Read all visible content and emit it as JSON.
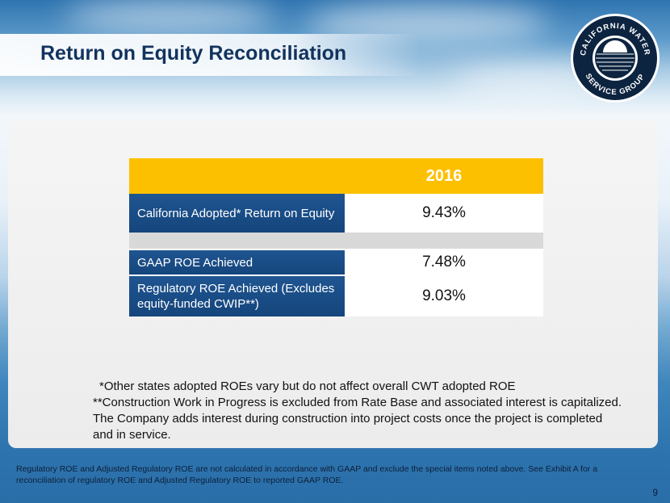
{
  "slide": {
    "title": "Return on Equity Reconciliation",
    "logo_text": "CALIFORNIA WATER SERVICE GROUP",
    "page_number": "9"
  },
  "table": {
    "year": "2016",
    "rows": [
      {
        "label": "California Adopted* Return on Equity",
        "value": "9.43%"
      },
      {
        "label": "GAAP ROE Achieved",
        "value": "7.48%"
      },
      {
        "label": "Regulatory ROE Achieved (Excludes equity-funded CWIP**)",
        "value": "9.03%"
      }
    ]
  },
  "notes": {
    "line1": "*Other states adopted ROEs vary but do not affect overall CWT adopted ROE",
    "line2": "**Construction Work in Progress is excluded from Rate Base and associated interest is capitalized. The Company adds interest during construction into project costs once the project is completed and in service."
  },
  "footer": "Regulatory ROE and Adjusted Regulatory ROE are not calculated in accordance with GAAP and exclude the special items noted above. See Exhibit A for a reconciliation of regulatory ROE and Adjusted Regulatory ROE to reported GAAP ROE."
}
